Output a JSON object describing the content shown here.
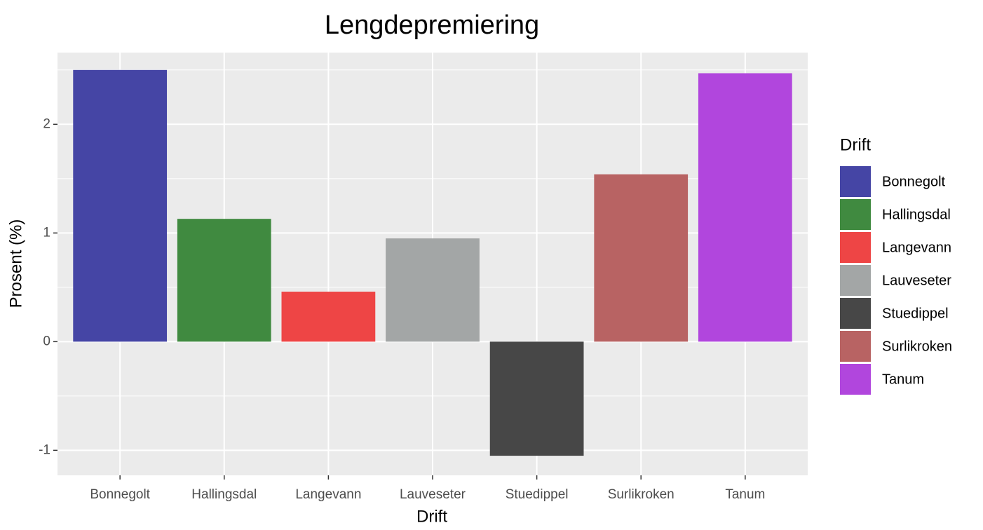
{
  "chart_data": {
    "type": "bar",
    "title": "Lengdepremiering",
    "x_label": "Drift",
    "y_label": "Prosent (%)",
    "legend_title": "Drift",
    "categories": [
      "Bonnegolt",
      "Hallingsdal",
      "Langevann",
      "Lauveseter",
      "Stuedippel",
      "Surlikroken",
      "Tanum"
    ],
    "values": [
      2.5,
      1.13,
      0.46,
      0.95,
      -1.05,
      1.54,
      2.47
    ],
    "colors": [
      "#4545a5",
      "#408a40",
      "#ee4545",
      "#a3a6a6",
      "#474747",
      "#b86363",
      "#b146dd"
    ],
    "ylim": [
      -1.23,
      2.66
    ],
    "yticks": [
      -1,
      0,
      1,
      2
    ],
    "grid": true,
    "legend": "right"
  }
}
